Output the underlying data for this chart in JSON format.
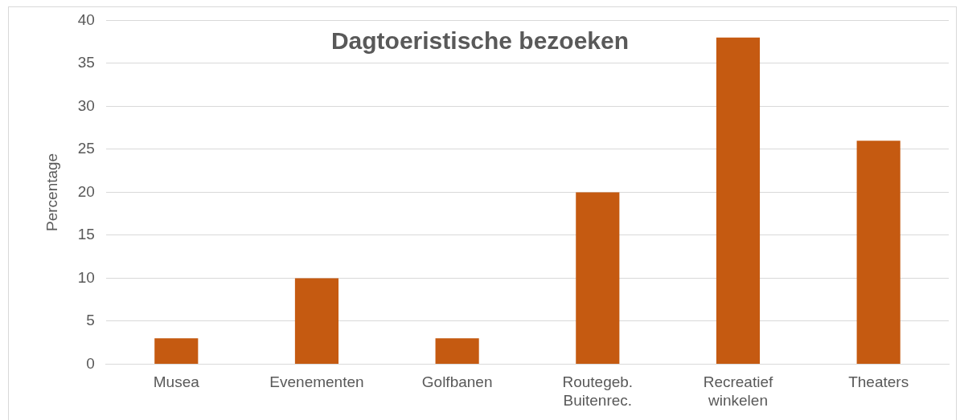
{
  "chart_data": {
    "type": "bar",
    "title": "Dagtoeristische bezoeken",
    "ylabel": "Percentage",
    "categories": [
      "Musea",
      "Evenementen",
      "Golfbanen",
      "Routegeb. Buitenrec.",
      "Recreatief winkelen",
      "Theaters"
    ],
    "values": [
      3,
      10,
      3,
      20,
      38,
      26
    ],
    "color": "#c55a11",
    "ylim": [
      0,
      40
    ],
    "yticks": [
      0,
      5,
      10,
      15,
      20,
      25,
      30,
      35,
      40
    ],
    "grid": "y",
    "legend": false
  }
}
